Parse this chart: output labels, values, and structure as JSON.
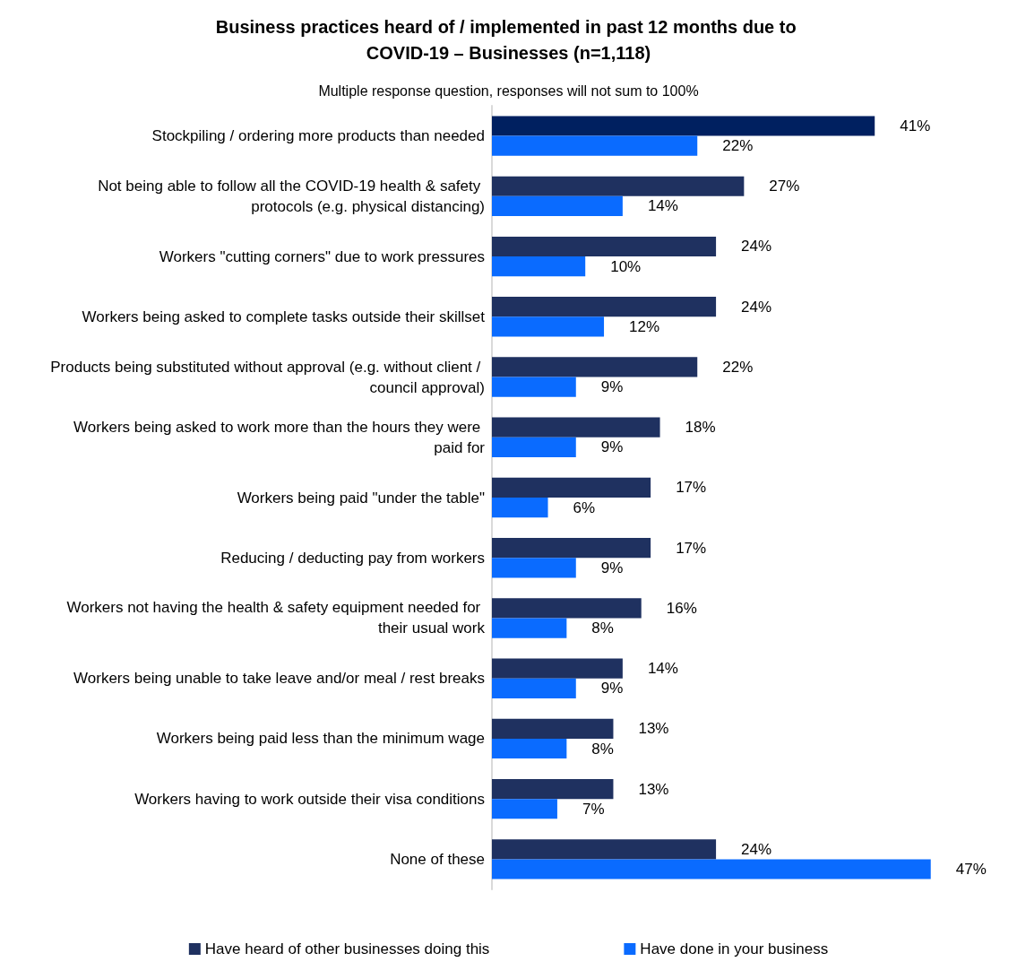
{
  "chart_data": {
    "type": "bar",
    "orientation": "horizontal",
    "title": "Business practices heard of / implemented in past 12 months due to COVID-19 – Businesses (n=1,118)",
    "subtitle": "Multiple response question, responses will not sum to 100%",
    "categories": [
      "Stockpiling / ordering more products than needed",
      "Not being able to follow all the COVID-19 health & safety protocols (e.g. physical distancing)",
      "Workers \"cutting corners\" due to work pressures",
      "Workers being asked to complete tasks outside their skillset",
      "Products being substituted without approval (e.g. without client / council approval)",
      "Workers being asked to work more than the hours they were paid for",
      "Workers being paid \"under the table\"",
      "Reducing / deducting pay from workers",
      "Workers not having the health & safety equipment needed for their usual work",
      "Workers being unable to take leave and/or meal / rest breaks",
      "Workers being paid less than the minimum wage",
      "Workers having to work outside their visa conditions",
      "None of these"
    ],
    "series": [
      {
        "name": "Have heard of other businesses doing this",
        "color": "#1f3160",
        "colors": [
          "#002060",
          "#1f3160",
          "#1f3160",
          "#1f3160",
          "#1f3160",
          "#1f3160",
          "#1f3160",
          "#1f3160",
          "#1f3160",
          "#1f3160",
          "#1f3160",
          "#1f3160",
          "#1f3160"
        ],
        "values": [
          41,
          27,
          24,
          24,
          22,
          18,
          17,
          17,
          16,
          14,
          13,
          13,
          24
        ],
        "value_labels": [
          "41%",
          "27%",
          "24%",
          "24%",
          "22%",
          "18%",
          "17%",
          "17%",
          "16%",
          "14%",
          "13%",
          "13%",
          "24%"
        ]
      },
      {
        "name": "Have done in your business",
        "color": "#0a6bff",
        "values": [
          22,
          14,
          10,
          12,
          9,
          9,
          6,
          9,
          8,
          9,
          8,
          7,
          47
        ],
        "value_labels": [
          "22%",
          "14%",
          "10%",
          "12%",
          "9%",
          "9%",
          "6%",
          "9%",
          "8%",
          "9%",
          "8%",
          "7%",
          "47%"
        ]
      }
    ],
    "legend": "bottom",
    "grid": false
  }
}
